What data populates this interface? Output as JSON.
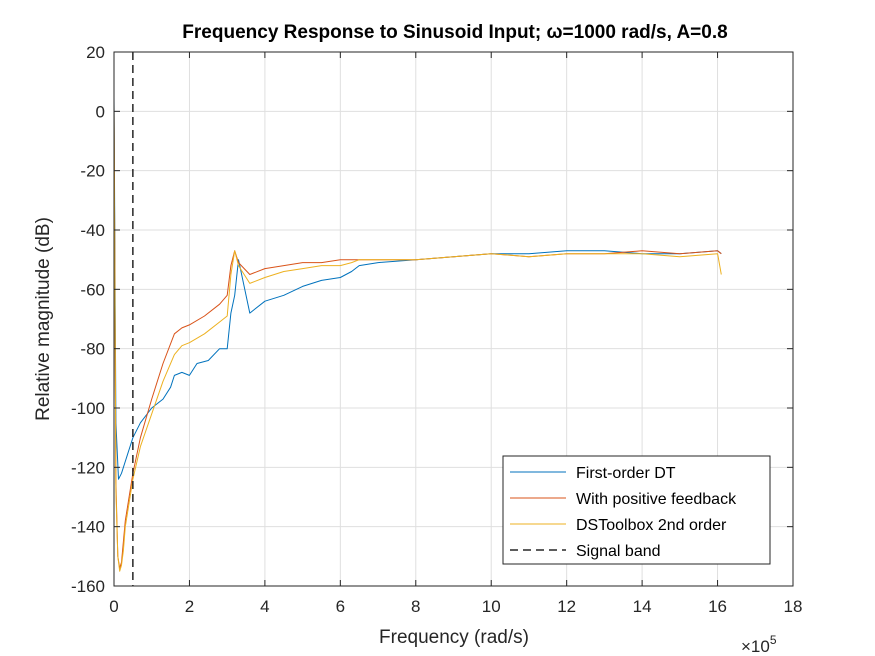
{
  "chart_data": {
    "type": "line",
    "title": "Frequency Response to Sinusoid Input; ω=1000 rad/s, A=0.8",
    "xlabel": "Frequency (rad/s)",
    "ylabel": "Relative magnitude (dB)",
    "x_exponent_base": "×10",
    "x_exponent_power": "5",
    "xlim": [
      0,
      18
    ],
    "ylim": [
      -160,
      20
    ],
    "xticks": [
      0,
      2,
      4,
      6,
      8,
      10,
      12,
      14,
      16,
      18
    ],
    "xtick_labels": [
      "0",
      "2",
      "4",
      "6",
      "8",
      "10",
      "12",
      "14",
      "16",
      "18"
    ],
    "yticks": [
      -160,
      -140,
      -120,
      -100,
      -80,
      -60,
      -40,
      -20,
      0,
      20
    ],
    "ytick_labels": [
      "-160",
      "-140",
      "-120",
      "-100",
      "-80",
      "-60",
      "-40",
      "-20",
      "0",
      "20"
    ],
    "grid": true,
    "legend_position": "bottom-right",
    "series": [
      {
        "name": "First-order DT",
        "color": "#0072BD",
        "x": [
          0,
          0.05,
          0.12,
          0.2,
          0.3,
          0.4,
          0.5,
          0.7,
          1.0,
          1.3,
          1.5,
          1.6,
          1.8,
          2.0,
          2.2,
          2.5,
          2.8,
          3.0,
          3.1,
          3.2,
          3.3,
          3.6,
          4.0,
          4.5,
          5.0,
          5.5,
          6.0,
          6.3,
          6.5,
          7.0,
          8.0,
          9.0,
          10.0,
          11.0,
          12.0,
          13.0,
          14.0,
          15.0,
          16.0,
          16.1
        ],
        "y": [
          5,
          -105,
          -124,
          -122,
          -118,
          -114,
          -110,
          -105,
          -100,
          -97,
          -93,
          -89,
          -88,
          -89,
          -85,
          -84,
          -80,
          -80,
          -68,
          -62,
          -50,
          -68,
          -64,
          -62,
          -59,
          -57,
          -56,
          -54,
          -52,
          -51,
          -50,
          -49,
          -48,
          -48,
          -47,
          -47,
          -48,
          -48,
          -47,
          -48
        ]
      },
      {
        "name": "With positive feedback",
        "color": "#D95319",
        "x": [
          0,
          0.05,
          0.1,
          0.15,
          0.2,
          0.25,
          0.3,
          0.4,
          0.5,
          0.7,
          1.0,
          1.3,
          1.6,
          1.8,
          2.0,
          2.4,
          2.8,
          3.0,
          3.1,
          3.2,
          3.3,
          3.6,
          4.0,
          4.5,
          5.0,
          5.5,
          6.0,
          6.3,
          6.5,
          7.0,
          8.0,
          9.0,
          10.0,
          11.0,
          12.0,
          13.0,
          14.0,
          15.0,
          16.0,
          16.1
        ],
        "y": [
          2,
          -125,
          -150,
          -154,
          -152,
          -145,
          -138,
          -130,
          -122,
          -110,
          -97,
          -85,
          -75,
          -73,
          -72,
          -69,
          -65,
          -62,
          -52,
          -47,
          -51,
          -55,
          -53,
          -52,
          -51,
          -51,
          -50,
          -50,
          -50,
          -50,
          -50,
          -49,
          -48,
          -49,
          -48,
          -48,
          -47,
          -48,
          -47,
          -48
        ]
      },
      {
        "name": "DSToolbox 2nd order",
        "color": "#EDB120",
        "x": [
          0,
          0.05,
          0.1,
          0.15,
          0.2,
          0.25,
          0.3,
          0.4,
          0.5,
          0.7,
          1.0,
          1.3,
          1.6,
          1.8,
          2.0,
          2.4,
          2.8,
          3.0,
          3.1,
          3.2,
          3.3,
          3.6,
          4.0,
          4.5,
          5.0,
          5.5,
          6.0,
          6.3,
          6.5,
          7.0,
          8.0,
          9.0,
          10.0,
          11.0,
          12.0,
          13.0,
          14.0,
          15.0,
          16.0,
          16.1
        ],
        "y": [
          3,
          -128,
          -150,
          -155,
          -153,
          -148,
          -140,
          -132,
          -124,
          -113,
          -102,
          -91,
          -82,
          -79,
          -78,
          -75,
          -71,
          -69,
          -55,
          -47,
          -52,
          -58,
          -56,
          -54,
          -53,
          -52,
          -52,
          -51,
          -50,
          -50,
          -50,
          -49,
          -48,
          -49,
          -48,
          -48,
          -48,
          -49,
          -48,
          -55
        ]
      }
    ],
    "reference_lines": [
      {
        "name": "Signal band",
        "type": "vertical",
        "x": 0.5,
        "color": "#262626",
        "dash": "dashed"
      }
    ]
  }
}
